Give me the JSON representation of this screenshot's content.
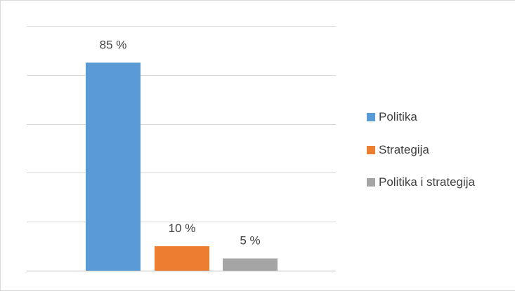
{
  "chart_data": {
    "type": "bar",
    "title": "",
    "xlabel": "",
    "ylabel": "",
    "ylim": [
      0,
      100
    ],
    "grid": true,
    "legend_position": "right",
    "categories": [
      "Politika",
      "Strategija",
      "Politika i strategija"
    ],
    "values": [
      85,
      10,
      5
    ],
    "data_labels": [
      "85 %",
      "10 %",
      "5 %"
    ],
    "colors": [
      "#5b9bd5",
      "#ed7d31",
      "#a5a5a5"
    ],
    "legend": [
      {
        "label": "Politika",
        "color": "#5b9bd5"
      },
      {
        "label": "Strategija",
        "color": "#ed7d31"
      },
      {
        "label": "Politika i strategija",
        "color": "#a5a5a5"
      }
    ]
  }
}
